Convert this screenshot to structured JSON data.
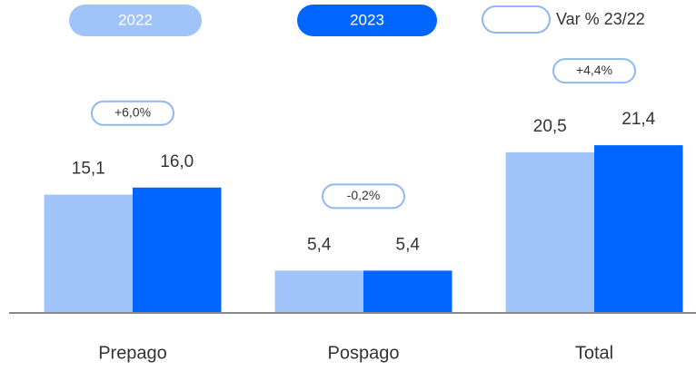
{
  "chart_data": {
    "type": "bar",
    "categories": [
      "Prepago",
      "Pospago",
      "Total"
    ],
    "series": [
      {
        "name": "2022",
        "color": "#a0c4fa",
        "values": [
          15.1,
          5.4,
          20.5
        ],
        "value_labels": [
          "15,1",
          "5,4",
          "20,5"
        ]
      },
      {
        "name": "2023",
        "color": "#0066ff",
        "values": [
          16.0,
          5.4,
          21.4
        ],
        "value_labels": [
          "16,0",
          "5,4",
          "21,4"
        ]
      }
    ],
    "variance": {
      "name": "Var % 23/22",
      "values": [
        6.0,
        -0.2,
        4.4
      ],
      "value_labels": [
        "+6,0%",
        "-0,2%",
        "+4,4%"
      ]
    }
  }
}
